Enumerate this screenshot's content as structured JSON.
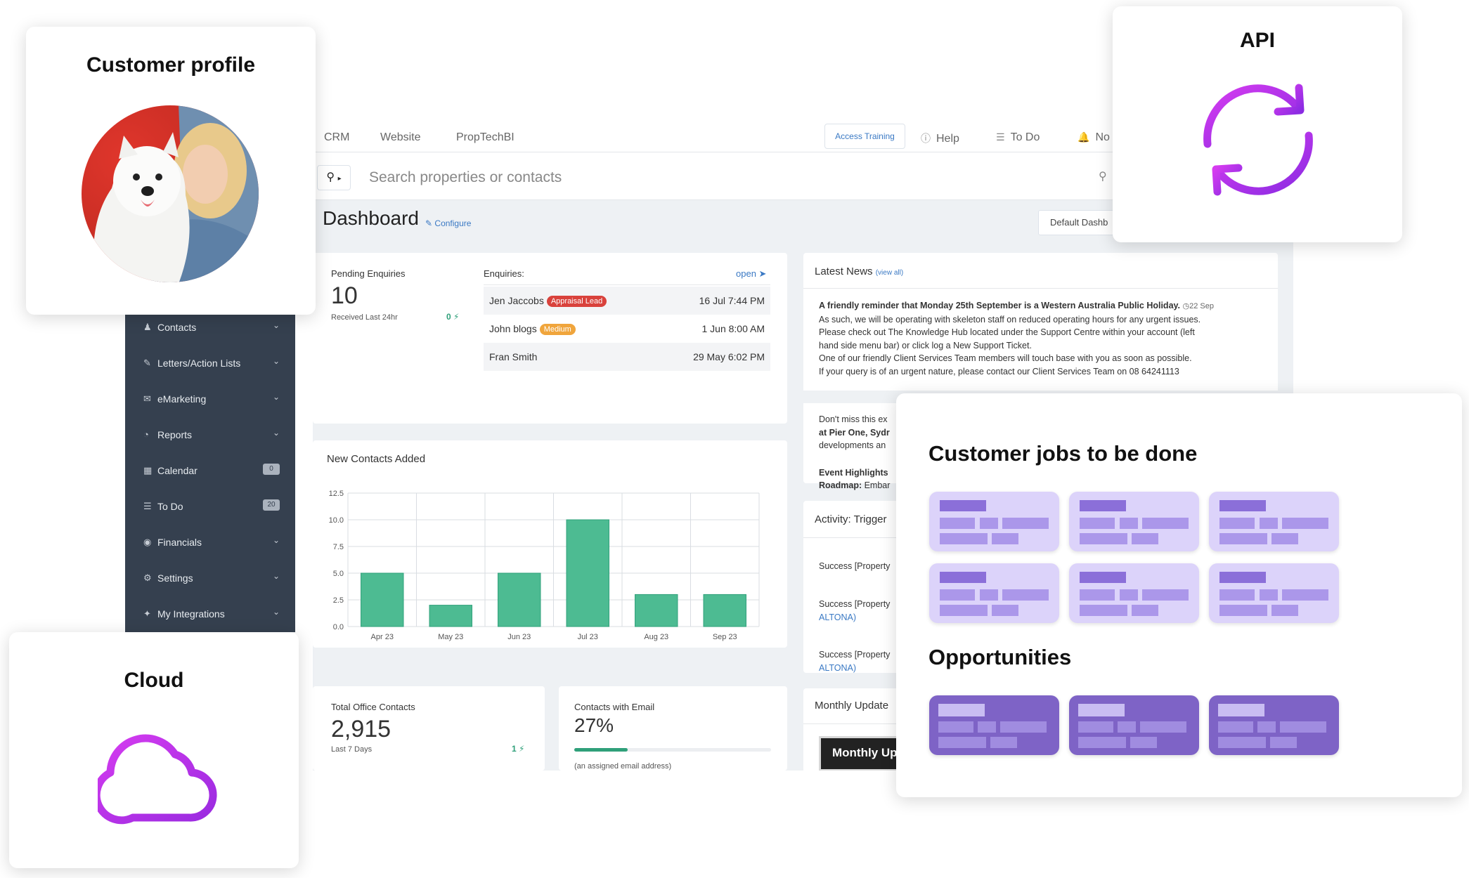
{
  "topnav": {
    "links": [
      "CRM",
      "Website",
      "PropTechBI"
    ],
    "access_training": "Access Training",
    "help": "Help",
    "todo": "To Do",
    "notifications": "No"
  },
  "search": {
    "placeholder": "Search properties or contacts"
  },
  "dashboard": {
    "title": "Dashboard",
    "configure": "Configure",
    "default_dash": "Default Dashb"
  },
  "sidebar": {
    "items": [
      {
        "icon": "user-icon",
        "label": "Contacts",
        "badge": ""
      },
      {
        "icon": "edit-icon",
        "label": "Letters/Action Lists",
        "badge": ""
      },
      {
        "icon": "envelope-icon",
        "label": "eMarketing",
        "badge": ""
      },
      {
        "icon": "pie-chart-icon",
        "label": "Reports",
        "badge": ""
      },
      {
        "icon": "calendar-icon",
        "label": "Calendar",
        "badge": "0"
      },
      {
        "icon": "list-icon",
        "label": "To Do",
        "badge": "20"
      },
      {
        "icon": "money-icon",
        "label": "Financials",
        "badge": ""
      },
      {
        "icon": "cogs-icon",
        "label": "Settings",
        "badge": ""
      },
      {
        "icon": "plug-icon",
        "label": "My Integrations",
        "badge": ""
      }
    ]
  },
  "pending": {
    "label": "Pending Enquiries",
    "value": "10",
    "sub": "Received Last 24hr",
    "delta": "0"
  },
  "enquiries": {
    "label": "Enquiries:",
    "open": "open",
    "rows": [
      {
        "name": "Jen Jaccobs",
        "tag": "Appraisal Lead",
        "tag_color": "#d9423c",
        "time": "16 Jul 7:44 PM"
      },
      {
        "name": "John blogs",
        "tag": "Medium",
        "tag_color": "#f0a53c",
        "time": "1 Jun 8:00 AM"
      },
      {
        "name": "Fran Smith",
        "tag": "",
        "tag_color": "",
        "time": "29 May 6:02 PM"
      }
    ]
  },
  "news": {
    "title": "Latest News",
    "view_all": "(view all)",
    "headline": "A friendly reminder that Monday 25th September is a Western Australia Public Holiday.",
    "date": "22 Sep",
    "lines": [
      "As such, we will be operating with skeleton staff on reduced operating hours for any urgent issues.",
      "Please check out The Knowledge Hub located under the Support Centre within your account (left",
      "hand side menu bar) or click log a New Support Ticket.",
      "One of our friendly Client Services Team members will touch base with you as soon as possible.",
      "If your query is of an urgent nature, please contact our Client Services Team on 08 64241113"
    ],
    "second": {
      "line1": "Don't miss this ex",
      "line2": "at Pier One, Sydr",
      "line3": "developments an",
      "line4": "Event Highlights",
      "line5_bold": "Roadmap:",
      "line5": " Embar"
    }
  },
  "activity": {
    "title": "Activity: Trigger",
    "items": [
      {
        "line1": "Success [Property",
        "line2": ""
      },
      {
        "line1": "Success [Property",
        "line2": "ALTONA)"
      },
      {
        "line1": "Success [Property",
        "line2": "ALTONA)"
      }
    ]
  },
  "monthly": {
    "title": "Monthly Update",
    "button": "Monthly Up"
  },
  "total_contacts": {
    "label": "Total Office Contacts",
    "value": "2,915",
    "sub": "Last 7 Days",
    "delta": "1"
  },
  "email_contacts": {
    "label": "Contacts with Email",
    "value": "27%",
    "progress": 0.27,
    "sub": "(an assigned email address)"
  },
  "chart_data": {
    "type": "bar",
    "title": "New Contacts Added",
    "categories": [
      "Apr 23",
      "May 23",
      "Jun 23",
      "Jul 23",
      "Aug 23",
      "Sep 23"
    ],
    "values": [
      5,
      2,
      5,
      10,
      3,
      3
    ],
    "ylim": [
      0,
      12.5
    ],
    "yticks": [
      "0.0",
      "2.5",
      "5.0",
      "7.5",
      "10.0",
      "12.5"
    ],
    "ytick_values": [
      0,
      2.5,
      5,
      7.5,
      10,
      12.5
    ],
    "bar_color": "#4dbb92",
    "bar_stroke": "#2fa07a",
    "grid": true
  },
  "overlays": {
    "profile": {
      "title": "Customer profile",
      "avatar": "avatar-photo"
    },
    "api": {
      "title": "API",
      "icon": "sync-icon",
      "color": "#b41fe6"
    },
    "cloud": {
      "title": "Cloud",
      "icon": "cloud-icon",
      "color": "#b41fe6"
    },
    "jobs": {
      "title": "Customer jobs to be done",
      "opportunities": "Opportunities"
    }
  }
}
